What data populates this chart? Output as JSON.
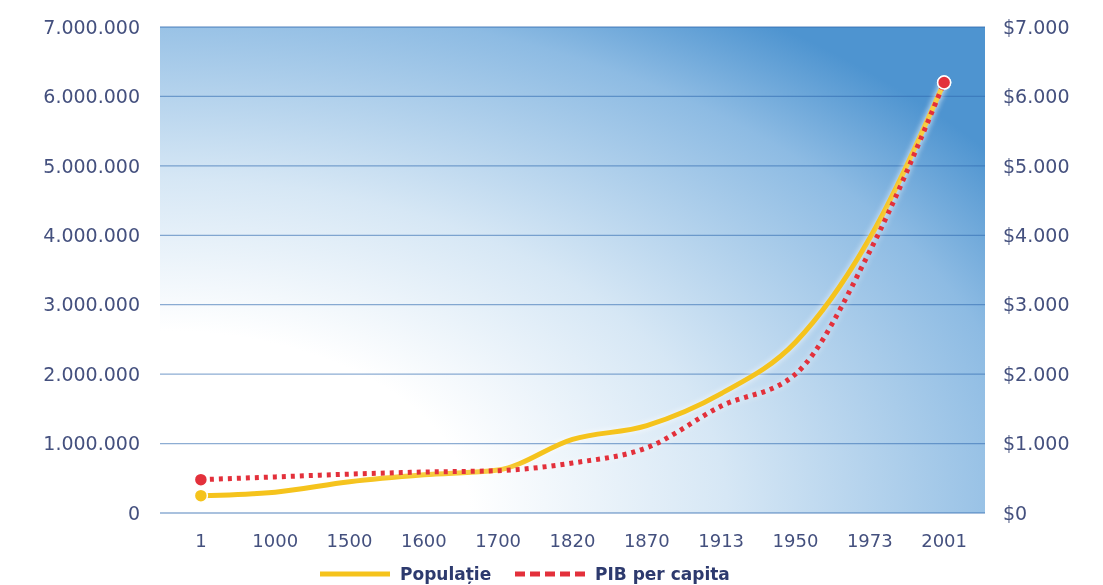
{
  "chart_data": {
    "type": "line",
    "categories": [
      "1",
      "1000",
      "1500",
      "1600",
      "1700",
      "1820",
      "1870",
      "1913",
      "1950",
      "1973",
      "2001"
    ],
    "series": [
      {
        "name": "Populație",
        "color": "#f5c31c",
        "line_style": "solid",
        "values": [
          250000,
          300000,
          450000,
          550000,
          620000,
          1060000,
          1260000,
          1720000,
          2460000,
          3960000,
          6200000
        ]
      },
      {
        "name": "PIB per capita",
        "color": "#e3303b",
        "line_style": "dotted",
        "axis": "y2",
        "values": [
          480,
          520,
          560,
          590,
          610,
          720,
          940,
          1540,
          2000,
          3770,
          6200
        ]
      }
    ],
    "ylim": [
      0,
      7000000
    ],
    "yticks": [
      {
        "value": 0,
        "label": "0"
      },
      {
        "value": 1000000,
        "label": "1.000.000"
      },
      {
        "value": 2000000,
        "label": "2.000.000"
      },
      {
        "value": 3000000,
        "label": "3.000.000"
      },
      {
        "value": 4000000,
        "label": "4.000.000"
      },
      {
        "value": 5000000,
        "label": "5.000.000"
      },
      {
        "value": 6000000,
        "label": "6.000.000"
      },
      {
        "value": 7000000,
        "label": "7.000.000"
      }
    ],
    "y2lim": [
      0,
      7000
    ],
    "y2ticks": [
      {
        "value": 0,
        "label": "$0"
      },
      {
        "value": 1000,
        "label": "$1.000"
      },
      {
        "value": 2000,
        "label": "$2.000"
      },
      {
        "value": 3000,
        "label": "$3.000"
      },
      {
        "value": 4000,
        "label": "$4.000"
      },
      {
        "value": 5000,
        "label": "$5.000"
      },
      {
        "value": 6000,
        "label": "$6.000"
      },
      {
        "value": 7000,
        "label": "$7.000"
      }
    ],
    "grid": "y",
    "legend": "bottom"
  }
}
